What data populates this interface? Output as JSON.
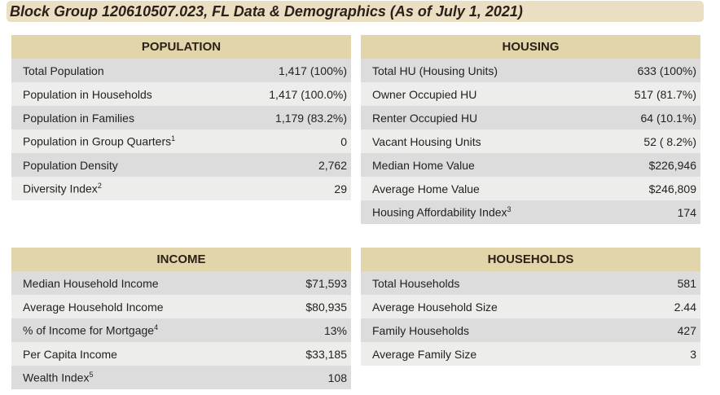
{
  "title": "Block Group 120610507.023, FL Data & Demographics (As of July 1, 2021)",
  "panels": [
    {
      "title": "POPULATION",
      "rows": [
        {
          "label": "Total Population",
          "sup": "",
          "value": "1,417 (100%)"
        },
        {
          "label": "Population in Households",
          "sup": "",
          "value": "1,417 (100.0%)"
        },
        {
          "label": "Population in Families",
          "sup": "",
          "value": "1,179 (83.2%)"
        },
        {
          "label": "Population in Group Quarters",
          "sup": "1",
          "value": "0"
        },
        {
          "label": "Population Density",
          "sup": "",
          "value": "2,762"
        },
        {
          "label": "Diversity Index",
          "sup": "2",
          "value": "29"
        }
      ]
    },
    {
      "title": "HOUSING",
      "rows": [
        {
          "label": "Total HU (Housing Units)",
          "sup": "",
          "value": "633 (100%)"
        },
        {
          "label": "Owner Occupied HU",
          "sup": "",
          "value": "517 (81.7%)"
        },
        {
          "label": "Renter Occupied HU",
          "sup": "",
          "value": "64 (10.1%)"
        },
        {
          "label": "Vacant Housing Units",
          "sup": "",
          "value": "52 ( 8.2%)"
        },
        {
          "label": "Median Home Value",
          "sup": "",
          "value": "$226,946"
        },
        {
          "label": "Average Home Value",
          "sup": "",
          "value": "$246,809"
        },
        {
          "label": "Housing Affordability Index",
          "sup": "3",
          "value": "174"
        }
      ]
    },
    {
      "title": "INCOME",
      "rows": [
        {
          "label": "Median Household Income",
          "sup": "",
          "value": "$71,593"
        },
        {
          "label": "Average Household Income",
          "sup": "",
          "value": "$80,935"
        },
        {
          "label": "% of Income for Mortgage",
          "sup": "4",
          "value": "13%"
        },
        {
          "label": "Per Capita Income",
          "sup": "",
          "value": "$33,185"
        },
        {
          "label": "Wealth Index",
          "sup": "5",
          "value": "108"
        }
      ]
    },
    {
      "title": "HOUSEHOLDS",
      "rows": [
        {
          "label": "Total Households",
          "sup": "",
          "value": "581"
        },
        {
          "label": "Average Household Size",
          "sup": "",
          "value": "2.44"
        },
        {
          "label": "Family Households",
          "sup": "",
          "value": "427"
        },
        {
          "label": "Average Family Size",
          "sup": "",
          "value": "3"
        }
      ]
    }
  ]
}
